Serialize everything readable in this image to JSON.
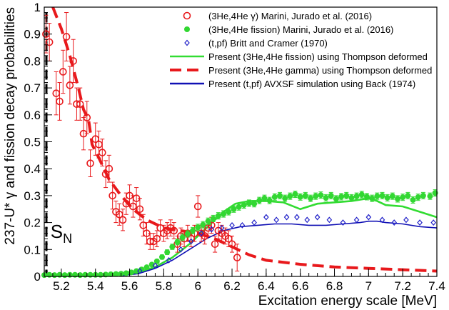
{
  "chart_data": {
    "type": "scatter",
    "xlabel": "Excitation energy scale [MeV]",
    "ylabel": "237-U*  γ and fission decay probabilities",
    "xlim": [
      5.1,
      7.4
    ],
    "ylim": [
      0,
      1
    ],
    "x_ticks": [
      "5.2",
      "5.4",
      "5.6",
      "5.8",
      "6",
      "6.2",
      "6.4",
      "6.6",
      "6.8",
      "7",
      "7.2",
      "7.4"
    ],
    "y_ticks": [
      "0",
      "0.1",
      "0.2",
      "0.3",
      "0.4",
      "0.5",
      "0.6",
      "0.7",
      "0.8",
      "0.9",
      "1"
    ],
    "annotation": {
      "text": "S",
      "subscript": "N",
      "x": 5.12,
      "y": 0.17
    },
    "legend_position": "top-right",
    "grid": false,
    "series": [
      {
        "name": "(3He,4He  γ)  Marini, Jurado et al. (2016)",
        "kind": "points-with-errors",
        "marker": "open-circle",
        "color": "#e8191c",
        "points": [
          [
            5.11,
            0.9,
            0.07
          ],
          [
            5.13,
            0.87,
            0.07
          ],
          [
            5.17,
            0.68,
            0.08
          ],
          [
            5.19,
            0.65,
            0.07
          ],
          [
            5.21,
            0.76,
            0.08
          ],
          [
            5.23,
            0.89,
            0.09
          ],
          [
            5.25,
            0.71,
            0.07
          ],
          [
            5.27,
            0.8,
            0.08
          ],
          [
            5.29,
            0.64,
            0.06
          ],
          [
            5.31,
            0.64,
            0.06
          ],
          [
            5.33,
            0.53,
            0.06
          ],
          [
            5.35,
            0.59,
            0.06
          ],
          [
            5.37,
            0.42,
            0.05
          ],
          [
            5.4,
            0.51,
            0.06
          ],
          [
            5.42,
            0.49,
            0.05
          ],
          [
            5.44,
            0.46,
            0.05
          ],
          [
            5.46,
            0.38,
            0.05
          ],
          [
            5.48,
            0.4,
            0.05
          ],
          [
            5.5,
            0.3,
            0.05
          ],
          [
            5.52,
            0.24,
            0.04
          ],
          [
            5.54,
            0.23,
            0.04
          ],
          [
            5.56,
            0.21,
            0.04
          ],
          [
            5.58,
            0.27,
            0.04
          ],
          [
            5.6,
            0.3,
            0.04
          ],
          [
            5.62,
            0.26,
            0.04
          ],
          [
            5.64,
            0.29,
            0.04
          ],
          [
            5.66,
            0.25,
            0.04
          ],
          [
            5.68,
            0.19,
            0.04
          ],
          [
            5.7,
            0.16,
            0.04
          ],
          [
            5.72,
            0.13,
            0.03
          ],
          [
            5.74,
            0.13,
            0.03
          ],
          [
            5.76,
            0.14,
            0.03
          ],
          [
            5.78,
            0.18,
            0.03
          ],
          [
            5.8,
            0.16,
            0.03
          ],
          [
            5.82,
            0.17,
            0.03
          ],
          [
            5.84,
            0.18,
            0.03
          ],
          [
            5.86,
            0.17,
            0.03
          ],
          [
            5.88,
            0.12,
            0.03
          ],
          [
            5.9,
            0.15,
            0.03
          ],
          [
            5.92,
            0.14,
            0.03
          ],
          [
            5.94,
            0.16,
            0.03
          ],
          [
            5.96,
            0.14,
            0.03
          ],
          [
            5.98,
            0.16,
            0.03
          ],
          [
            6.0,
            0.26,
            0.04
          ],
          [
            6.02,
            0.16,
            0.03
          ],
          [
            6.04,
            0.15,
            0.03
          ],
          [
            6.06,
            0.18,
            0.03
          ],
          [
            6.08,
            0.19,
            0.03
          ],
          [
            6.1,
            0.12,
            0.03
          ],
          [
            6.12,
            0.17,
            0.03
          ],
          [
            6.14,
            0.16,
            0.03
          ],
          [
            6.16,
            0.15,
            0.03
          ],
          [
            6.18,
            0.14,
            0.03
          ],
          [
            6.2,
            0.12,
            0.03
          ],
          [
            6.23,
            0.07,
            0.05
          ]
        ]
      },
      {
        "name": "(3He,4He fission)  Marini, Jurado et al. (2016)",
        "kind": "points-with-errors",
        "marker": "filled-circle",
        "color": "#32d732",
        "points": [
          [
            5.1,
            0.005,
            0.004
          ],
          [
            5.13,
            0.006,
            0.004
          ],
          [
            5.16,
            0.005,
            0.004
          ],
          [
            5.19,
            0.006,
            0.004
          ],
          [
            5.22,
            0.005,
            0.004
          ],
          [
            5.25,
            0.006,
            0.004
          ],
          [
            5.28,
            0.006,
            0.004
          ],
          [
            5.31,
            0.005,
            0.004
          ],
          [
            5.34,
            0.006,
            0.004
          ],
          [
            5.37,
            0.006,
            0.004
          ],
          [
            5.4,
            0.006,
            0.004
          ],
          [
            5.43,
            0.006,
            0.004
          ],
          [
            5.46,
            0.007,
            0.004
          ],
          [
            5.49,
            0.008,
            0.004
          ],
          [
            5.52,
            0.009,
            0.004
          ],
          [
            5.55,
            0.01,
            0.004
          ],
          [
            5.58,
            0.012,
            0.004
          ],
          [
            5.61,
            0.015,
            0.004
          ],
          [
            5.64,
            0.02,
            0.005
          ],
          [
            5.67,
            0.026,
            0.005
          ],
          [
            5.7,
            0.034,
            0.006
          ],
          [
            5.73,
            0.044,
            0.006
          ],
          [
            5.76,
            0.056,
            0.007
          ],
          [
            5.79,
            0.072,
            0.008
          ],
          [
            5.82,
            0.09,
            0.009
          ],
          [
            5.85,
            0.11,
            0.01
          ],
          [
            5.88,
            0.128,
            0.011
          ],
          [
            5.91,
            0.145,
            0.012
          ],
          [
            5.94,
            0.158,
            0.012
          ],
          [
            5.97,
            0.17,
            0.012
          ],
          [
            6.0,
            0.182,
            0.012
          ],
          [
            6.03,
            0.192,
            0.012
          ],
          [
            6.06,
            0.205,
            0.012
          ],
          [
            6.09,
            0.215,
            0.012
          ],
          [
            6.12,
            0.225,
            0.012
          ],
          [
            6.15,
            0.232,
            0.012
          ],
          [
            6.18,
            0.24,
            0.012
          ],
          [
            6.21,
            0.25,
            0.012
          ],
          [
            6.24,
            0.258,
            0.012
          ],
          [
            6.27,
            0.265,
            0.012
          ],
          [
            6.3,
            0.272,
            0.012
          ],
          [
            6.33,
            0.27,
            0.012
          ],
          [
            6.36,
            0.282,
            0.012
          ],
          [
            6.39,
            0.29,
            0.012
          ],
          [
            6.42,
            0.282,
            0.012
          ],
          [
            6.45,
            0.295,
            0.012
          ],
          [
            6.48,
            0.3,
            0.012
          ],
          [
            6.51,
            0.29,
            0.012
          ],
          [
            6.54,
            0.298,
            0.012
          ],
          [
            6.57,
            0.305,
            0.012
          ],
          [
            6.6,
            0.295,
            0.012
          ],
          [
            6.63,
            0.3,
            0.012
          ],
          [
            6.66,
            0.29,
            0.012
          ],
          [
            6.69,
            0.298,
            0.012
          ],
          [
            6.72,
            0.302,
            0.012
          ],
          [
            6.75,
            0.292,
            0.012
          ],
          [
            6.78,
            0.3,
            0.012
          ],
          [
            6.81,
            0.288,
            0.012
          ],
          [
            6.84,
            0.296,
            0.012
          ],
          [
            6.87,
            0.3,
            0.012
          ],
          [
            6.9,
            0.292,
            0.012
          ],
          [
            6.93,
            0.298,
            0.012
          ],
          [
            6.96,
            0.304,
            0.012
          ],
          [
            6.99,
            0.296,
            0.012
          ],
          [
            7.02,
            0.29,
            0.012
          ],
          [
            7.05,
            0.298,
            0.012
          ],
          [
            7.08,
            0.3,
            0.012
          ],
          [
            7.11,
            0.292,
            0.012
          ],
          [
            7.14,
            0.298,
            0.012
          ],
          [
            7.17,
            0.288,
            0.012
          ],
          [
            7.2,
            0.294,
            0.012
          ],
          [
            7.23,
            0.3,
            0.012
          ],
          [
            7.26,
            0.284,
            0.012
          ],
          [
            7.29,
            0.294,
            0.012
          ],
          [
            7.32,
            0.3,
            0.012
          ],
          [
            7.36,
            0.298,
            0.012
          ],
          [
            7.39,
            0.31,
            0.012
          ]
        ]
      },
      {
        "name": "(t,pf) Britt and Cramer (1970)",
        "kind": "points",
        "marker": "open-diamond",
        "color": "#2020c8",
        "points": [
          [
            5.66,
            0.02
          ],
          [
            5.75,
            0.04
          ],
          [
            5.83,
            0.06
          ],
          [
            5.9,
            0.1
          ],
          [
            5.96,
            0.13
          ],
          [
            6.02,
            0.16
          ],
          [
            6.08,
            0.175
          ],
          [
            6.14,
            0.18
          ],
          [
            6.2,
            0.19
          ],
          [
            6.26,
            0.19
          ],
          [
            6.33,
            0.2
          ],
          [
            6.4,
            0.22
          ],
          [
            6.46,
            0.21
          ],
          [
            6.52,
            0.22
          ],
          [
            6.58,
            0.22
          ],
          [
            6.64,
            0.21
          ],
          [
            6.7,
            0.22
          ],
          [
            6.77,
            0.21
          ],
          [
            6.85,
            0.2
          ],
          [
            6.93,
            0.21
          ],
          [
            7.0,
            0.22
          ],
          [
            7.08,
            0.21
          ],
          [
            7.15,
            0.2
          ],
          [
            7.22,
            0.21
          ],
          [
            7.3,
            0.2
          ],
          [
            7.38,
            0.2
          ]
        ]
      },
      {
        "name": "Present  (3He,4He fission) using Thompson deformed",
        "kind": "line",
        "style": "solid",
        "color": "#32dc32",
        "points": [
          [
            5.1,
            0.003
          ],
          [
            5.4,
            0.003
          ],
          [
            5.55,
            0.006
          ],
          [
            5.65,
            0.015
          ],
          [
            5.75,
            0.035
          ],
          [
            5.85,
            0.07
          ],
          [
            5.95,
            0.12
          ],
          [
            6.05,
            0.18
          ],
          [
            6.15,
            0.24
          ],
          [
            6.22,
            0.27
          ],
          [
            6.3,
            0.28
          ],
          [
            6.4,
            0.28
          ],
          [
            6.5,
            0.275
          ],
          [
            6.6,
            0.25
          ],
          [
            6.7,
            0.27
          ],
          [
            6.8,
            0.275
          ],
          [
            6.9,
            0.28
          ],
          [
            7.0,
            0.29
          ],
          [
            7.05,
            0.28
          ],
          [
            7.1,
            0.265
          ],
          [
            7.2,
            0.26
          ],
          [
            7.3,
            0.24
          ],
          [
            7.4,
            0.22
          ]
        ]
      },
      {
        "name": "Present (3He,4He gamma) using Thompson deformed",
        "kind": "line",
        "style": "dashed",
        "color": "#e8191c",
        "points": [
          [
            5.15,
            1.0
          ],
          [
            5.2,
            0.92
          ],
          [
            5.25,
            0.82
          ],
          [
            5.3,
            0.7
          ],
          [
            5.33,
            0.62
          ],
          [
            5.36,
            0.58
          ],
          [
            5.38,
            0.49
          ],
          [
            5.42,
            0.44
          ],
          [
            5.48,
            0.36
          ],
          [
            5.55,
            0.3
          ],
          [
            5.62,
            0.25
          ],
          [
            5.7,
            0.21
          ],
          [
            5.8,
            0.18
          ],
          [
            5.9,
            0.17
          ],
          [
            6.0,
            0.16
          ],
          [
            6.1,
            0.14
          ],
          [
            6.2,
            0.11
          ],
          [
            6.3,
            0.08
          ],
          [
            6.4,
            0.06
          ],
          [
            6.6,
            0.045
          ],
          [
            6.8,
            0.035
          ],
          [
            7.0,
            0.03
          ],
          [
            7.2,
            0.025
          ],
          [
            7.4,
            0.02
          ]
        ]
      },
      {
        "name": "Present (t,pf) AVXSF simulation using Back (1974)",
        "kind": "line",
        "style": "solid",
        "color": "#1010b4",
        "points": [
          [
            5.55,
            0.003
          ],
          [
            5.65,
            0.01
          ],
          [
            5.75,
            0.03
          ],
          [
            5.85,
            0.06
          ],
          [
            5.95,
            0.1
          ],
          [
            6.05,
            0.14
          ],
          [
            6.15,
            0.17
          ],
          [
            6.25,
            0.185
          ],
          [
            6.35,
            0.19
          ],
          [
            6.45,
            0.195
          ],
          [
            6.55,
            0.195
          ],
          [
            6.65,
            0.19
          ],
          [
            6.75,
            0.19
          ],
          [
            6.85,
            0.195
          ],
          [
            6.95,
            0.2
          ],
          [
            7.0,
            0.205
          ],
          [
            7.05,
            0.205
          ],
          [
            7.1,
            0.2
          ],
          [
            7.2,
            0.195
          ],
          [
            7.3,
            0.185
          ],
          [
            7.4,
            0.18
          ]
        ]
      }
    ]
  }
}
